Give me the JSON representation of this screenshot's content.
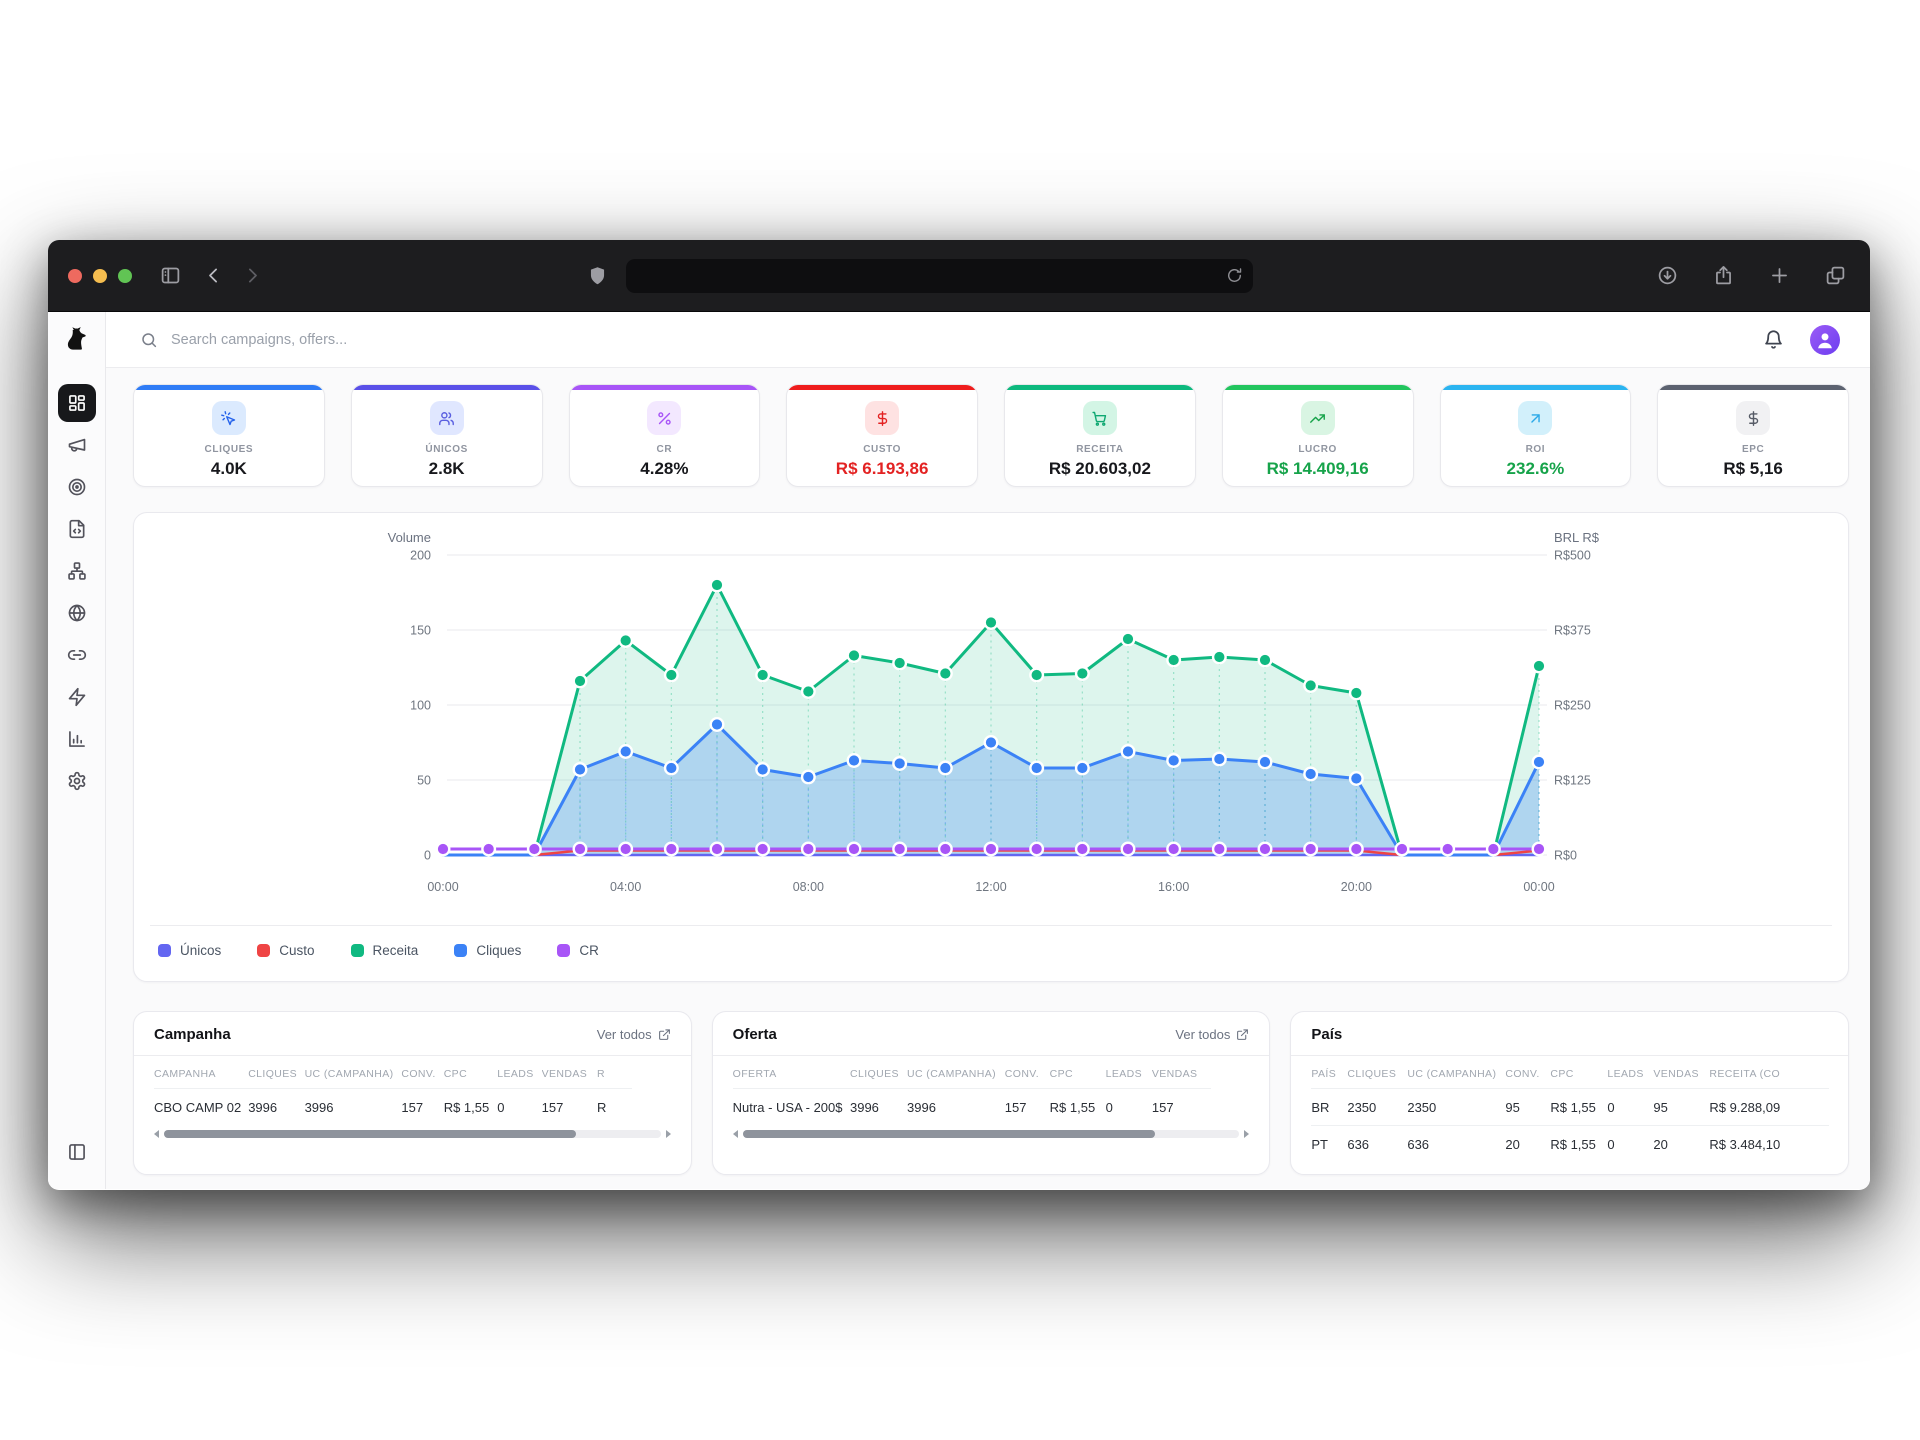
{
  "browser": {
    "address_bar_text": "",
    "traffic_lights": {
      "close": "#ee6a5f",
      "minimize": "#f5bd4f",
      "zoom": "#61c454"
    }
  },
  "topbar": {
    "search_placeholder": "Search campaigns, offers..."
  },
  "sidebar": {
    "logo_icon": "dog-logo-icon",
    "items": [
      {
        "key": "dashboard",
        "icon": "dashboard-grid-icon",
        "active": true
      },
      {
        "key": "campaigns",
        "icon": "megaphone-icon",
        "active": false
      },
      {
        "key": "offers",
        "icon": "target-icon",
        "active": false
      },
      {
        "key": "landers",
        "icon": "file-code-icon",
        "active": false
      },
      {
        "key": "funnels",
        "icon": "network-icon",
        "active": false
      },
      {
        "key": "domains",
        "icon": "globe-icon",
        "active": false
      },
      {
        "key": "links",
        "icon": "link-icon",
        "active": false
      },
      {
        "key": "automation",
        "icon": "zap-icon",
        "active": false
      },
      {
        "key": "reports",
        "icon": "bar-chart-icon",
        "active": false
      },
      {
        "key": "settings",
        "icon": "gear-icon",
        "active": false
      }
    ],
    "bottom_item": {
      "key": "collapse-sidebar",
      "icon": "panel-left-icon"
    }
  },
  "kpis": [
    {
      "label": "CLIQUES",
      "value": "4.0K",
      "accent": "#2f7cf6",
      "icon": "cursor-click-icon",
      "icon_bg": "#dbeafe",
      "icon_color": "#2563eb",
      "value_color": "#17181c"
    },
    {
      "label": "ÚNICOS",
      "value": "2.8K",
      "accent": "#5a50e8",
      "icon": "users-icon",
      "icon_bg": "#e0e7ff",
      "icon_color": "#5a5fe0",
      "value_color": "#17181c"
    },
    {
      "label": "CR",
      "value": "4.28%",
      "accent": "#a855f7",
      "icon": "percent-icon",
      "icon_bg": "#f3e8ff",
      "icon_color": "#a855f7",
      "value_color": "#17181c"
    },
    {
      "label": "CUSTO",
      "value": "R$ 6.193,86",
      "accent": "#ef1d1d",
      "icon": "dollar-icon",
      "icon_bg": "#fee2e2",
      "icon_color": "#e32222",
      "value_color": "#e32222"
    },
    {
      "label": "RECEITA",
      "value": "R$ 20.603,02",
      "accent": "#0db97e",
      "icon": "cart-icon",
      "icon_bg": "#d3f5e5",
      "icon_color": "#0fa872",
      "value_color": "#17181c"
    },
    {
      "label": "LUCRO",
      "value": "R$ 14.409,16",
      "accent": "#22c55e",
      "icon": "trend-up-icon",
      "icon_bg": "#d9f5e3",
      "icon_color": "#17a34a",
      "value_color": "#16a34a"
    },
    {
      "label": "ROI",
      "value": "232.6%",
      "accent": "#2bb4f0",
      "icon": "arrow-up-right-icon",
      "icon_bg": "#d2f0fb",
      "icon_color": "#2ba9e8",
      "value_color": "#16a34a"
    },
    {
      "label": "EPC",
      "value": "R$ 5,16",
      "accent": "#5c6270",
      "icon": "dollar-icon",
      "icon_bg": "#f1f1f3",
      "icon_color": "#565b66",
      "value_color": "#17181c"
    }
  ],
  "chart_data": {
    "type": "line",
    "x_hours": [
      0,
      1,
      2,
      3,
      4,
      5,
      6,
      7,
      8,
      9,
      10,
      11,
      12,
      13,
      14,
      15,
      16,
      17,
      18,
      19,
      20,
      21,
      22,
      23,
      24
    ],
    "x_tick_positions": [
      0,
      4,
      8,
      12,
      16,
      20,
      24
    ],
    "x_tick_labels": [
      "00:00",
      "04:00",
      "08:00",
      "12:00",
      "16:00",
      "20:00",
      "00:00"
    ],
    "left_axis": {
      "label": "Volume",
      "ticks": [
        0,
        50,
        100,
        150,
        200
      ],
      "min": 0,
      "max": 200
    },
    "right_axis": {
      "label": "BRL R$",
      "tick_labels": [
        "R$0",
        "R$125",
        "R$250",
        "R$375",
        "R$500"
      ]
    },
    "grid": true,
    "legend_position": "bottom",
    "series": [
      {
        "name": "Únicos",
        "color": "#6366f1",
        "width": 2.5,
        "area": false,
        "dots": false,
        "values": [
          0,
          0,
          0,
          0,
          0,
          0,
          0,
          0,
          0,
          0,
          0,
          0,
          0,
          0,
          0,
          0,
          0,
          0,
          0,
          0,
          0,
          0,
          0,
          0,
          0
        ]
      },
      {
        "name": "Custo",
        "color": "#ef4444",
        "width": 2.5,
        "area": false,
        "dots": false,
        "values": [
          0,
          0,
          0,
          3,
          3,
          3,
          3,
          3,
          3,
          3,
          3,
          3,
          3,
          3,
          3,
          3,
          3,
          3,
          3,
          3,
          3,
          0,
          0,
          0,
          3
        ]
      },
      {
        "name": "Receita",
        "color": "#10b981",
        "width": 3,
        "area": true,
        "dots": true,
        "fill_opacity": 0.14,
        "values": [
          0,
          0,
          0,
          116,
          143,
          120,
          180,
          120,
          109,
          133,
          128,
          121,
          155,
          120,
          121,
          144,
          130,
          132,
          130,
          113,
          108,
          0,
          0,
          0,
          126
        ]
      },
      {
        "name": "Cliques",
        "color": "#3b82f6",
        "width": 3,
        "area": true,
        "dots": true,
        "fill_opacity": 0.28,
        "values": [
          0,
          0,
          0,
          57,
          69,
          58,
          87,
          57,
          52,
          63,
          61,
          58,
          75,
          58,
          58,
          69,
          63,
          64,
          62,
          54,
          51,
          0,
          0,
          0,
          62
        ]
      },
      {
        "name": "CR",
        "color": "#a855f7",
        "width": 3,
        "area": false,
        "dots": true,
        "values": [
          4,
          4,
          4,
          4,
          4,
          4,
          4,
          4,
          4,
          4,
          4,
          4,
          4,
          4,
          4,
          4,
          4,
          4,
          4,
          4,
          4,
          4,
          4,
          4,
          4
        ]
      }
    ]
  },
  "tables": [
    {
      "id": "campanha",
      "title": "Campanha",
      "link_label": "Ver todos",
      "scrollbar": true,
      "columns": [
        "CAMPANHA",
        "CLIQUES",
        "UC (CAMPANHA)",
        "CONV.",
        "CPC",
        "LEADS",
        "VENDAS",
        "R"
      ],
      "rows": [
        [
          "CBO CAMP 02",
          "3996",
          "3996",
          "157",
          "R$ 1,55",
          "0",
          "157",
          "R"
        ]
      ]
    },
    {
      "id": "oferta",
      "title": "Oferta",
      "link_label": "Ver todos",
      "scrollbar": true,
      "columns": [
        "OFERTA",
        "CLIQUES",
        "UC (CAMPANHA)",
        "CONV.",
        "CPC",
        "LEADS",
        "VENDAS"
      ],
      "rows": [
        [
          "Nutra - USA - 200$",
          "3996",
          "3996",
          "157",
          "R$ 1,55",
          "0",
          "157"
        ]
      ]
    },
    {
      "id": "pais",
      "title": "País",
      "link_label": "",
      "scrollbar": false,
      "columns": [
        "PAÍS",
        "CLIQUES",
        "UC (CAMPANHA)",
        "CONV.",
        "CPC",
        "LEADS",
        "VENDAS",
        "RECEITA (CO"
      ],
      "rows": [
        [
          "BR",
          "2350",
          "2350",
          "95",
          "R$ 1,55",
          "0",
          "95",
          "R$ 9.288,09"
        ],
        [
          "PT",
          "636",
          "636",
          "20",
          "R$ 1,55",
          "0",
          "20",
          "R$ 3.484,10"
        ]
      ]
    }
  ]
}
